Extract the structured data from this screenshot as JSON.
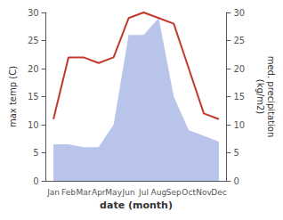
{
  "chart_data": {
    "type": "line",
    "xlabel": "date (month)",
    "ylabel": "max temp (C)",
    "y2label": "med. precipitation\n(kg/m2)",
    "categories": [
      "Jan",
      "Feb",
      "Mar",
      "Apr",
      "May",
      "Jun",
      "Jul",
      "Aug",
      "Sep",
      "Oct",
      "Nov",
      "Dec"
    ],
    "series": [
      {
        "type": "area",
        "color": "#b8c4ea",
        "axis": "y2",
        "values": [
          6.5,
          6.5,
          6,
          6,
          10,
          26,
          26,
          29,
          15,
          9,
          8,
          7
        ]
      },
      {
        "type": "line",
        "color": "#c0392b",
        "values": [
          11,
          22,
          22,
          21,
          22,
          29,
          30,
          29,
          28,
          20,
          12,
          11
        ]
      }
    ],
    "ylim": [
      0,
      30
    ],
    "yticks": [
      0,
      5,
      10,
      15,
      20,
      25,
      30
    ],
    "y2lim": [
      0,
      30
    ],
    "y2ticks": [
      0,
      5,
      10,
      15,
      20,
      25,
      30
    ],
    "grid": false
  }
}
